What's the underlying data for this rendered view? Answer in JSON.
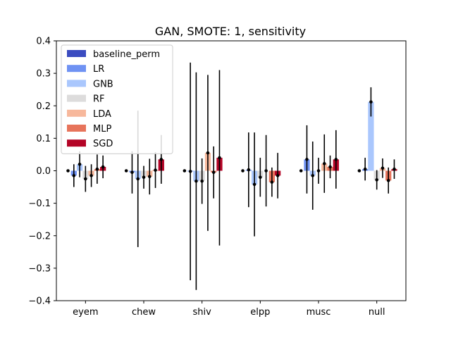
{
  "chart_data": {
    "type": "bar",
    "title": "GAN, SMOTE: 1, sensitivity",
    "xlabel": "",
    "ylabel": "",
    "categories": [
      "eyem",
      "chew",
      "shiv",
      "elpp",
      "musc",
      "null"
    ],
    "ylim": [
      -0.4,
      0.4
    ],
    "yticks": [
      -0.4,
      -0.3,
      -0.2,
      -0.1,
      0.0,
      0.1,
      0.2,
      0.3,
      0.4
    ],
    "ytick_labels": [
      "−0.4",
      "−0.3",
      "−0.2",
      "−0.1",
      "0.0",
      "0.1",
      "0.2",
      "0.3",
      "0.4"
    ],
    "legend_position": "top-left",
    "grid": false,
    "series": [
      {
        "name": "baseline_perm",
        "color": "#3b4cc0",
        "values": [
          0.0,
          0.0,
          0.0,
          0.0,
          0.0,
          0.0
        ],
        "err": [
          0.0,
          0.0,
          0.0,
          0.0,
          0.0,
          0.0
        ]
      },
      {
        "name": "LR",
        "color": "#6f92f3",
        "values": [
          -0.015,
          -0.005,
          -0.002,
          0.003,
          0.035,
          0.005
        ],
        "err": [
          0.035,
          0.065,
          0.335,
          0.115,
          0.105,
          0.035
        ]
      },
      {
        "name": "GNB",
        "color": "#aac7fd",
        "values": [
          0.02,
          -0.025,
          -0.032,
          -0.042,
          -0.015,
          0.212
        ],
        "err": [
          0.04,
          0.21,
          0.335,
          0.16,
          0.105,
          0.045
        ]
      },
      {
        "name": "RF",
        "color": "#dddcdc",
        "values": [
          -0.025,
          -0.02,
          -0.032,
          -0.02,
          0.0,
          -0.028
        ],
        "err": [
          0.04,
          0.035,
          0.07,
          0.06,
          0.04,
          0.03
        ]
      },
      {
        "name": "LDA",
        "color": "#f7b89c",
        "values": [
          -0.015,
          -0.018,
          0.055,
          0.0,
          0.022,
          0.008
        ],
        "err": [
          0.035,
          0.055,
          0.24,
          0.11,
          0.09,
          0.03
        ]
      },
      {
        "name": "MLP",
        "color": "#e7745b",
        "values": [
          0.005,
          0.002,
          -0.005,
          -0.035,
          0.012,
          -0.03
        ],
        "err": [
          0.045,
          0.055,
          0.08,
          0.045,
          0.035,
          0.04
        ]
      },
      {
        "name": "SGD",
        "color": "#b40426",
        "values": [
          0.012,
          0.035,
          0.04,
          -0.015,
          0.035,
          0.005
        ],
        "err": [
          0.035,
          0.075,
          0.27,
          0.07,
          0.09,
          0.03
        ]
      }
    ]
  }
}
